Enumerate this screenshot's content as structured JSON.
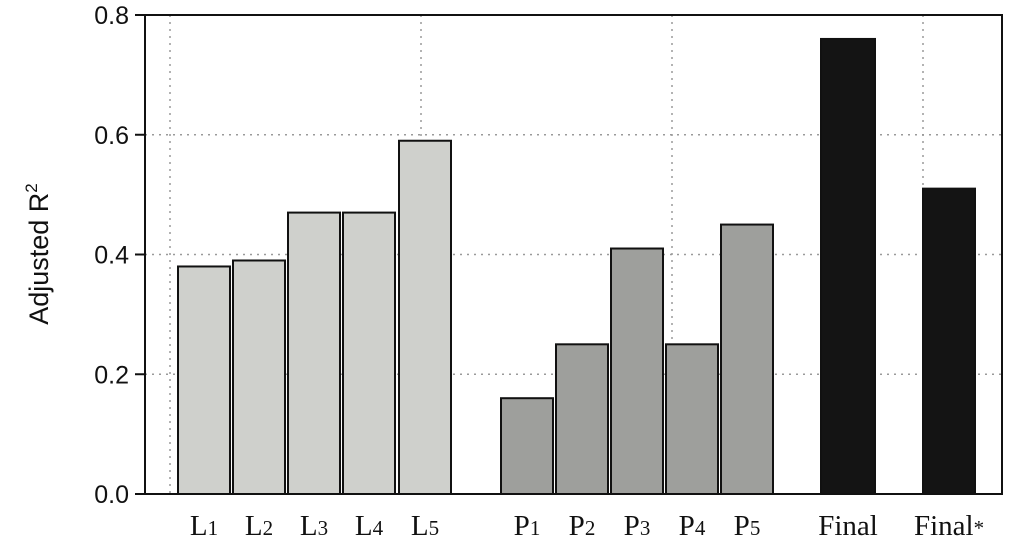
{
  "chart_data": {
    "type": "bar",
    "title": "",
    "xlabel": "",
    "ylabel": "Adjusted R",
    "ylabel_superscript": "2",
    "ylim": [
      0,
      0.8
    ],
    "yticks": [
      "0.0",
      "0.2",
      "0.4",
      "0.6",
      "0.8"
    ],
    "grid": true,
    "categories": [
      {
        "main": "L",
        "sub": "1",
        "value": 0.38,
        "group": "L"
      },
      {
        "main": "L",
        "sub": "2",
        "value": 0.39,
        "group": "L"
      },
      {
        "main": "L",
        "sub": "3",
        "value": 0.47,
        "group": "L"
      },
      {
        "main": "L",
        "sub": "4",
        "value": 0.47,
        "group": "L"
      },
      {
        "main": "L",
        "sub": "5",
        "value": 0.59,
        "group": "L"
      },
      {
        "main": "P",
        "sub": "1",
        "value": 0.16,
        "group": "P"
      },
      {
        "main": "P",
        "sub": "2",
        "value": 0.25,
        "group": "P"
      },
      {
        "main": "P",
        "sub": "3",
        "value": 0.41,
        "group": "P"
      },
      {
        "main": "P",
        "sub": "4",
        "value": 0.25,
        "group": "P"
      },
      {
        "main": "P",
        "sub": "5",
        "value": 0.45,
        "group": "P"
      },
      {
        "main": "Final",
        "sub": "",
        "value": 0.76,
        "group": "F"
      },
      {
        "main": "Final",
        "sub": "*",
        "value": 0.51,
        "group": "F"
      }
    ],
    "colors": {
      "L": "#cfd0cc",
      "P": "#9e9f9c",
      "F": "#141414"
    }
  }
}
